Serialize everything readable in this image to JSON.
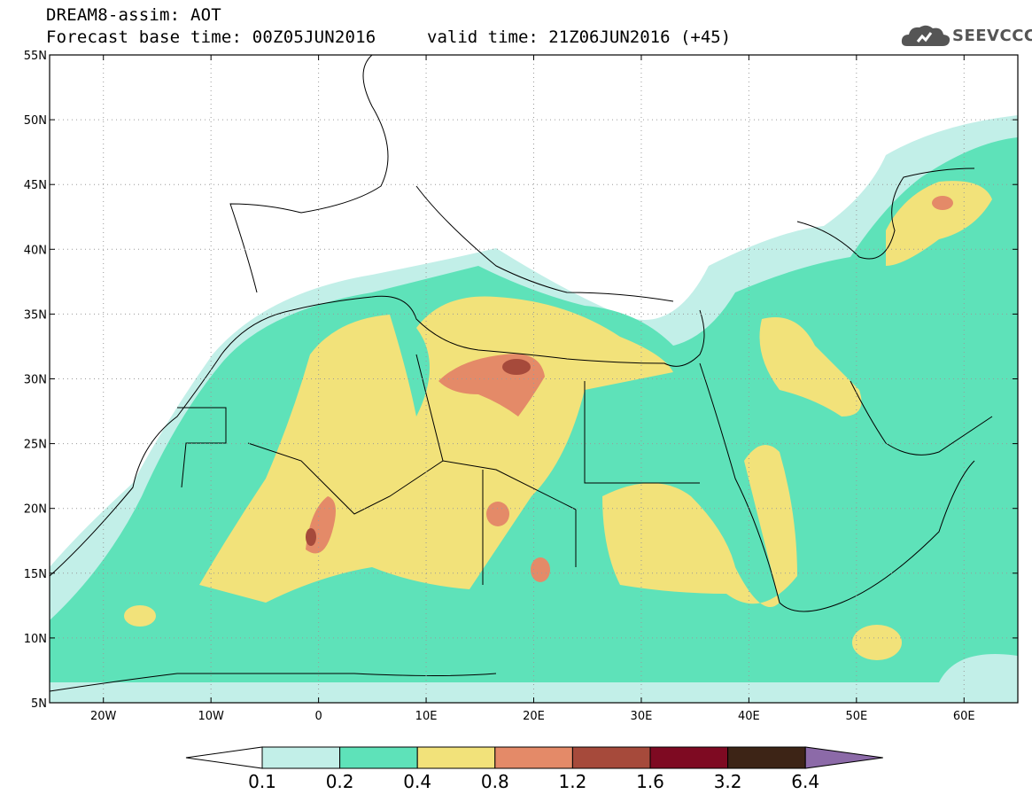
{
  "header": {
    "title_line1": "DREAM8-assim: AOT",
    "title_line2": "Forecast base time: 00Z05JUN2016",
    "valid_time": "valid time: 21Z06JUN2016 (+45)"
  },
  "logo": {
    "text": "SEEVCCC",
    "icon": "cloud-icon"
  },
  "map": {
    "lon_labels": [
      "20W",
      "10W",
      "0",
      "10E",
      "20E",
      "30E",
      "40E",
      "50E",
      "60E"
    ],
    "lat_labels": [
      "55N",
      "50N",
      "45N",
      "40N",
      "35N",
      "30N",
      "25N",
      "20N",
      "15N",
      "10N",
      "5N"
    ],
    "lon_range": [
      -25,
      65
    ],
    "lat_range": [
      5,
      55
    ],
    "grid": true
  },
  "colorbar": {
    "levels": [
      "0.1",
      "0.2",
      "0.4",
      "0.8",
      "1.2",
      "1.6",
      "3.2",
      "6.4"
    ],
    "colors": [
      "#c2efe8",
      "#5ee2b9",
      "#f2e27a",
      "#e48a68",
      "#a64a3b",
      "#7e0a22",
      "#3d2416",
      "#8c6aa8"
    ],
    "under_color": "#ffffff"
  }
}
